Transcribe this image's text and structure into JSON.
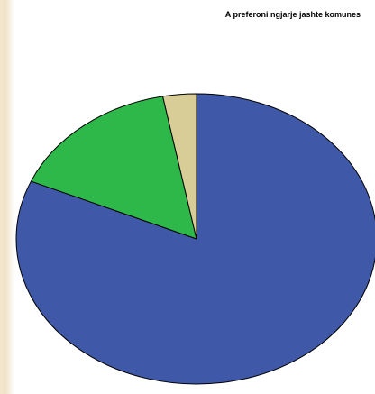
{
  "chart_data": {
    "type": "pie",
    "title": "A preferoni ngjarje jashte komunes",
    "slices": [
      {
        "value": 81.5,
        "color": "#3f58a8"
      },
      {
        "value": 15.5,
        "color": "#2eb84a"
      },
      {
        "value": 3.0,
        "color": "#d8cd96"
      }
    ],
    "legend": "none",
    "start": "top, clockwise"
  }
}
